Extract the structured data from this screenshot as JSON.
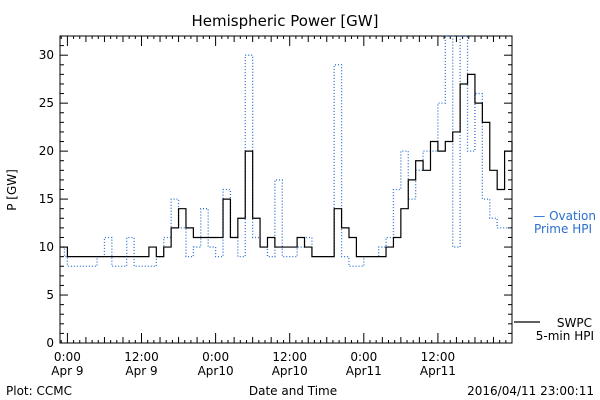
{
  "chart_data": {
    "type": "line",
    "title": "Hemispheric Power [GW]",
    "ylabel": "P [GW]",
    "xlabel": "Date and Time",
    "ylim": [
      0,
      32
    ],
    "xlim": [
      -0.05,
      3.0
    ],
    "x_unit": "days since 2016-04-09 00:00",
    "yticks": [
      0,
      5,
      10,
      15,
      20,
      25,
      30
    ],
    "xticks": [
      {
        "x": 0.0,
        "time": "0:00",
        "date": "Apr 9"
      },
      {
        "x": 0.5,
        "time": "12:00",
        "date": "Apr 9"
      },
      {
        "x": 1.0,
        "time": "0:00",
        "date": "Apr10"
      },
      {
        "x": 1.5,
        "time": "12:00",
        "date": "Apr10"
      },
      {
        "x": 2.0,
        "time": "0:00",
        "date": "Apr11"
      },
      {
        "x": 2.5,
        "time": "12:00",
        "date": "Apr11"
      }
    ],
    "series": [
      {
        "name": "Ovation Prime HPI",
        "style": "dotted-step",
        "color": "#2a6fd0",
        "x": [
          -0.05,
          -0.02,
          0.0,
          0.05,
          0.1,
          0.15,
          0.2,
          0.25,
          0.3,
          0.35,
          0.4,
          0.45,
          0.5,
          0.55,
          0.6,
          0.65,
          0.7,
          0.75,
          0.8,
          0.85,
          0.9,
          0.95,
          1.0,
          1.05,
          1.1,
          1.15,
          1.2,
          1.25,
          1.3,
          1.35,
          1.4,
          1.45,
          1.5,
          1.55,
          1.6,
          1.65,
          1.7,
          1.75,
          1.8,
          1.85,
          1.9,
          1.95,
          2.0,
          2.05,
          2.1,
          2.15,
          2.2,
          2.25,
          2.3,
          2.35,
          2.4,
          2.45,
          2.5,
          2.55,
          2.6,
          2.65,
          2.7,
          2.75,
          2.8,
          2.85,
          2.9,
          2.95
        ],
        "y": [
          10,
          9,
          8,
          8,
          8,
          8,
          9,
          11,
          8,
          8,
          11,
          8,
          8,
          8,
          9,
          11,
          15,
          12,
          9,
          10,
          14,
          10,
          9,
          16,
          11,
          9,
          30,
          11,
          10,
          9,
          17,
          9,
          9,
          10,
          11,
          9,
          9,
          9,
          29,
          9,
          8,
          8,
          9,
          9,
          10,
          11,
          16,
          20,
          15,
          18,
          20,
          20,
          25,
          32,
          10,
          32,
          20,
          26,
          15,
          13,
          12,
          12
        ],
        "legend": [
          "— Ovation",
          "Prime HPI"
        ]
      },
      {
        "name": "SWPC 5-min HPI",
        "style": "solid",
        "color": "#000000",
        "x": [
          -0.05,
          0.0,
          0.1,
          0.2,
          0.3,
          0.4,
          0.5,
          0.55,
          0.6,
          0.65,
          0.7,
          0.75,
          0.8,
          0.85,
          0.9,
          0.95,
          1.0,
          1.05,
          1.1,
          1.15,
          1.2,
          1.25,
          1.3,
          1.35,
          1.4,
          1.45,
          1.5,
          1.55,
          1.6,
          1.65,
          1.7,
          1.75,
          1.8,
          1.85,
          1.9,
          1.95,
          2.0,
          2.05,
          2.1,
          2.15,
          2.2,
          2.25,
          2.3,
          2.35,
          2.4,
          2.45,
          2.5,
          2.55,
          2.6,
          2.65,
          2.7,
          2.75,
          2.8,
          2.85,
          2.9,
          2.95,
          3.0
        ],
        "y": [
          10,
          9,
          9,
          9,
          9,
          9,
          9,
          10,
          9,
          10,
          12,
          14,
          12,
          11,
          11,
          11,
          11,
          15,
          11,
          13,
          20,
          13,
          10,
          11,
          10,
          10,
          10,
          11,
          10,
          9,
          9,
          9,
          14,
          12,
          11,
          9,
          9,
          9,
          9,
          10,
          11,
          14,
          17,
          19,
          18,
          21,
          20,
          21,
          22,
          27,
          28,
          25,
          23,
          18,
          16,
          20,
          21
        ],
        "legend": [
          "SWPC",
          "5-min HPI"
        ]
      }
    ],
    "grid": false,
    "legend_position": "right-outside"
  },
  "footer": {
    "plot_credit": "Plot: CCMC",
    "timestamp": "2016/04/11 23:00:11"
  }
}
